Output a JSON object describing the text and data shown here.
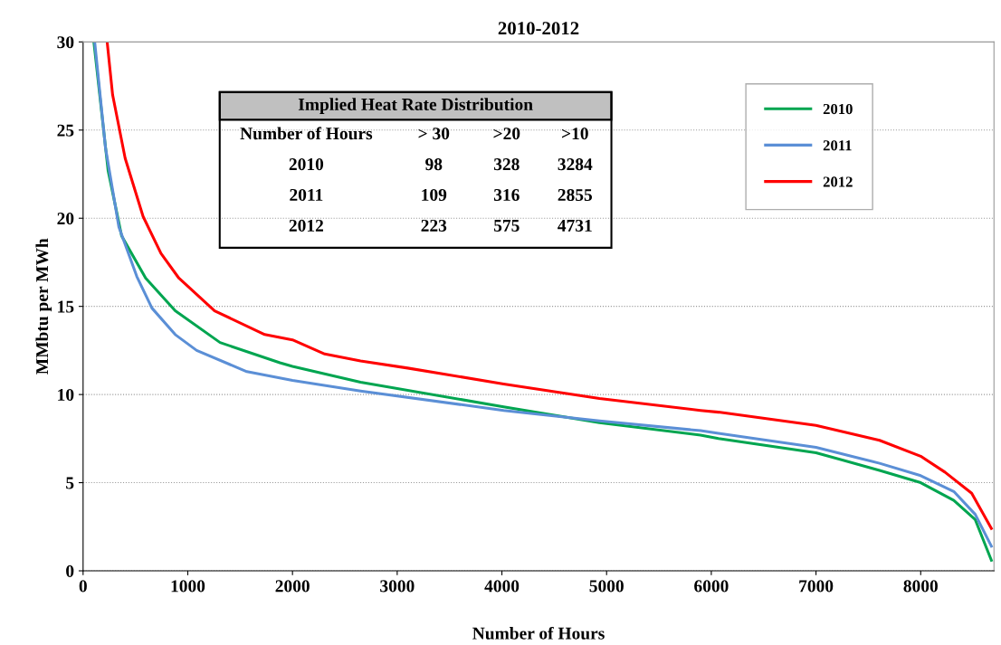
{
  "chart_data": {
    "type": "line",
    "title": "2010-2012",
    "xlabel": "Number of Hours",
    "ylabel": "MMbtu per MWh",
    "xlim": [
      0,
      8700
    ],
    "ylim": [
      0,
      30
    ],
    "xticks": [
      0,
      1000,
      2000,
      3000,
      4000,
      5000,
      6000,
      7000,
      8000
    ],
    "yticks": [
      0,
      5,
      10,
      15,
      20,
      25,
      30
    ],
    "grid": "y",
    "legend": "top right",
    "marker": "none",
    "line_style": "solid",
    "annotations": [
      "Implied Heat Rate Distribution",
      "Number of Hours",
      "> 30",
      ">20",
      ">10",
      "2010",
      "98",
      "328",
      "3284",
      "2011",
      "109",
      "316",
      "2855",
      "2012",
      "223",
      "575",
      "4731"
    ],
    "series": [
      {
        "name": "2010",
        "color": "#00a550",
        "x": [
          103,
          239,
          368,
          598,
          880,
          1308,
          1880,
          2000,
          2650,
          4017,
          4932,
          5897,
          6068,
          7000,
          7607,
          8000,
          8316,
          8521,
          8675
        ],
        "values": [
          30,
          22.7,
          19.0,
          16.6,
          14.75,
          12.95,
          11.8,
          11.6,
          10.7,
          9.3,
          8.4,
          7.7,
          7.5,
          6.7,
          5.7,
          5.0,
          4.0,
          2.9,
          0.6
        ]
      },
      {
        "name": "2011",
        "color": "#5b8fd6",
        "x": [
          111,
          214,
          342,
          513,
          658,
          880,
          1085,
          1564,
          2000,
          2650,
          4017,
          4932,
          5897,
          6068,
          7000,
          7607,
          8000,
          8316,
          8521,
          8675
        ],
        "values": [
          30,
          24.0,
          19.5,
          16.7,
          14.9,
          13.4,
          12.5,
          11.3,
          10.8,
          10.2,
          9.1,
          8.5,
          7.95,
          7.8,
          7.0,
          6.1,
          5.4,
          4.5,
          3.2,
          1.4
        ]
      },
      {
        "name": "2012",
        "color": "#ff0000",
        "x": [
          230,
          282,
          402,
          573,
          744,
          915,
          1256,
          1735,
          2000,
          2308,
          2650,
          3100,
          4017,
          4932,
          5897,
          6068,
          7000,
          7607,
          8000,
          8231,
          8487,
          8675
        ],
        "values": [
          30,
          27.0,
          23.4,
          20.1,
          18.0,
          16.6,
          14.75,
          13.4,
          13.1,
          12.3,
          11.9,
          11.5,
          10.6,
          9.77,
          9.1,
          9.0,
          8.25,
          7.4,
          6.5,
          5.6,
          4.4,
          2.4
        ]
      }
    ]
  }
}
